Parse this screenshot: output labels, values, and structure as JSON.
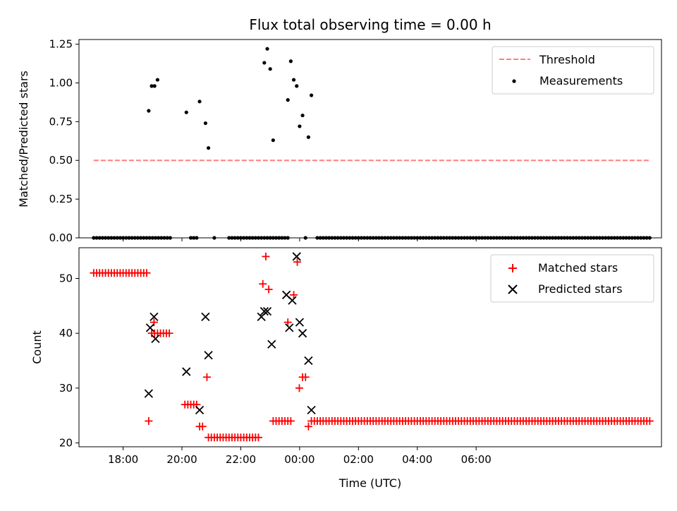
{
  "chart_data": [
    {
      "type": "scatter",
      "title": "Flux total observing time = 0.00 h",
      "xlabel": "",
      "ylabel": "Matched/Predicted stars",
      "x_unit": "hours since 17:00 UTC",
      "xlim": [
        -0.5,
        19.3
      ],
      "ylim": [
        0,
        1.28
      ],
      "yticks": [
        0.0,
        0.25,
        0.5,
        0.75,
        1.0,
        1.25
      ],
      "ytick_labels": [
        "0.00",
        "0.25",
        "0.50",
        "0.75",
        "1.00",
        "1.25"
      ],
      "legend": {
        "position": "top-right",
        "entries": [
          "Threshold",
          "Measurements"
        ]
      },
      "threshold": {
        "name": "Threshold",
        "value": 0.5,
        "x": [
          0.0,
          18.9
        ],
        "color": "#ff7f7f"
      },
      "measurements": {
        "name": "Measurements",
        "color": "#000000",
        "points": [
          [
            1.87,
            0.82
          ],
          [
            1.97,
            0.98
          ],
          [
            2.07,
            0.98
          ],
          [
            2.17,
            1.02
          ],
          [
            3.15,
            0.81
          ],
          [
            3.6,
            0.88
          ],
          [
            3.8,
            0.74
          ],
          [
            3.9,
            0.58
          ],
          [
            5.8,
            1.13
          ],
          [
            5.9,
            1.22
          ],
          [
            6.0,
            1.09
          ],
          [
            6.1,
            0.63
          ],
          [
            6.6,
            0.89
          ],
          [
            6.7,
            1.14
          ],
          [
            6.8,
            1.02
          ],
          [
            6.9,
            0.98
          ],
          [
            7.0,
            0.72
          ],
          [
            7.1,
            0.79
          ],
          [
            7.3,
            0.65
          ],
          [
            7.4,
            0.92
          ]
        ],
        "zero_runs": [
          [
            0.0,
            2.6,
            0.1
          ],
          [
            3.3,
            3.5,
            0.1
          ],
          [
            4.1,
            4.1,
            0.1
          ],
          [
            4.6,
            6.55,
            0.1
          ],
          [
            7.2,
            7.2,
            0.1
          ],
          [
            7.6,
            18.9,
            0.1
          ]
        ]
      }
    },
    {
      "type": "scatter",
      "title": "",
      "xlabel": "Time (UTC)",
      "ylabel": "Count",
      "x_unit": "hours since 17:00 UTC",
      "xlim": [
        -0.5,
        19.3
      ],
      "ylim": [
        19.3,
        55.6
      ],
      "xticks": [
        1,
        3,
        5,
        7,
        9,
        11,
        13
      ],
      "xtick_labels": [
        "18:00",
        "20:00",
        "22:00",
        "00:00",
        "02:00",
        "04:00",
        "06:00"
      ],
      "yticks": [
        20,
        30,
        40,
        50
      ],
      "ytick_labels": [
        "20",
        "30",
        "40",
        "50"
      ],
      "legend": {
        "position": "top-right",
        "entries": [
          "Matched stars",
          "Predicted stars"
        ]
      },
      "series": [
        {
          "name": "Matched stars",
          "marker": "plus",
          "color": "#ff0000",
          "runs": [
            [
              0.0,
              1.8,
              0.1,
              51
            ],
            [
              1.97,
              2.6,
              0.1,
              40
            ],
            [
              3.1,
              3.45,
              0.1,
              27
            ],
            [
              3.6,
              3.75,
              0.1,
              23
            ],
            [
              3.9,
              5.6,
              0.1,
              21
            ],
            [
              6.1,
              6.65,
              0.1,
              24
            ],
            [
              7.4,
              18.9,
              0.1,
              24
            ]
          ],
          "points": [
            [
              1.87,
              24
            ],
            [
              2.05,
              42
            ],
            [
              3.85,
              32
            ],
            [
              5.75,
              49
            ],
            [
              5.85,
              54
            ],
            [
              5.95,
              48
            ],
            [
              6.6,
              42
            ],
            [
              6.8,
              47
            ],
            [
              6.92,
              53
            ],
            [
              6.99,
              30
            ],
            [
              7.1,
              32
            ],
            [
              7.2,
              32
            ],
            [
              7.3,
              23
            ]
          ]
        },
        {
          "name": "Predicted stars",
          "marker": "x",
          "color": "#000000",
          "points": [
            [
              1.87,
              29
            ],
            [
              1.92,
              41
            ],
            [
              2.05,
              43
            ],
            [
              2.1,
              39
            ],
            [
              3.15,
              33
            ],
            [
              3.6,
              26
            ],
            [
              3.8,
              43
            ],
            [
              3.9,
              36
            ],
            [
              5.7,
              43
            ],
            [
              5.8,
              44
            ],
            [
              5.9,
              44
            ],
            [
              6.05,
              38
            ],
            [
              6.55,
              47
            ],
            [
              6.65,
              41
            ],
            [
              6.75,
              46
            ],
            [
              6.9,
              54
            ],
            [
              7.0,
              42
            ],
            [
              7.1,
              40
            ],
            [
              7.3,
              35
            ],
            [
              7.4,
              26
            ]
          ]
        }
      ]
    }
  ]
}
